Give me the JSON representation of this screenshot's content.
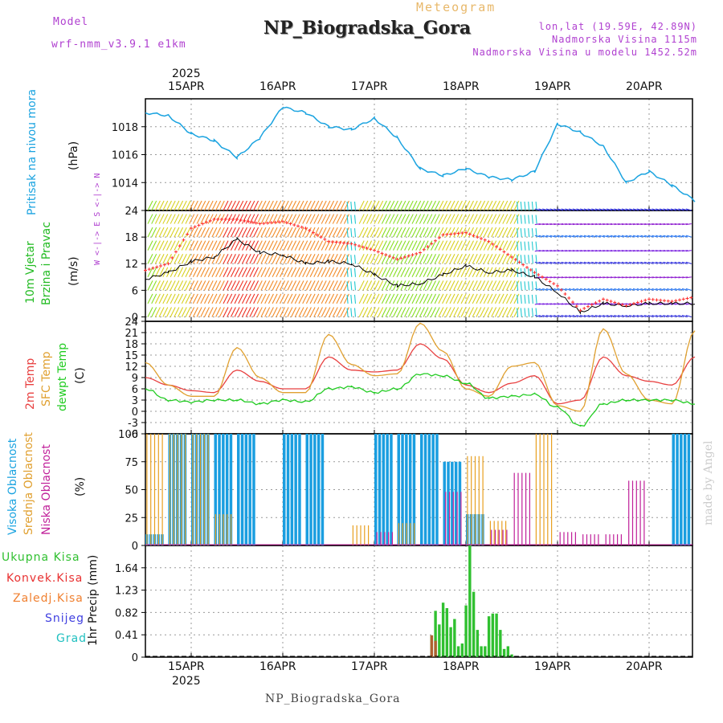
{
  "header": {
    "model_label": "Model",
    "model_name": "wrf-nmm_v3.9.1 e1km",
    "meteogram_label": "Meteogram",
    "station_title": "NP_Biogradska_Gora",
    "coords": "lon,lat (19.59E, 42.89N)",
    "altitude": "Nadmorska Visina 1115m",
    "model_altitude": "Nadmorska Visina u modelu 1452.52m",
    "year_top": "2025",
    "year_bottom": "2025",
    "footer_station": "NP_Biogradska_Gora",
    "made_by": "made by Angel"
  },
  "colors": {
    "pressure": "#1aa3e0",
    "wind_green": "#22bb22",
    "wind_speed": "#000000",
    "gust": "#ff3030",
    "temp2m": "#e84040",
    "sfc_temp": "#e0a030",
    "dewpoint": "#22cc22",
    "cloud_high": "#1a9ee0",
    "cloud_mid": "#e8a020",
    "cloud_low": "#c0209a",
    "precip_total": "#30c030",
    "precip_conv": "#e83030",
    "precip_frozen": "#f08030",
    "snow": "#4040e0",
    "hail": "#20c0c0",
    "dir_legend": "#b040d0"
  },
  "panels": {
    "pressure": {
      "label": "Pritisak na nivou mora",
      "unit": "(hPa)"
    },
    "wind": {
      "label1": "10m Vjetar",
      "label2": "Brzina i Pravac",
      "unit": "(m/s)",
      "dir_legend": "W <-|-> E   S <-|-> N"
    },
    "temp": {
      "label1": "2m Temp",
      "label2": "SFC Temp",
      "label3": "dewpt Temp",
      "unit": "(C)"
    },
    "cloud": {
      "label1": "Visoka Oblacnost",
      "label2": "Srednja Oblacnost",
      "label3": "Niska Oblacnost",
      "unit": "(%)"
    },
    "precip": {
      "unit": "1hr Precip (mm)"
    }
  },
  "precip_legend": [
    "Ukupna Kisa",
    "Konvek.Kisa",
    "Zaledj.Kisa",
    "Snijeg",
    "Grad"
  ],
  "chart_data": [
    {
      "type": "line",
      "name": "pressure",
      "x": [
        "14APR 12",
        "14APR 18",
        "15APR 00",
        "15APR 06",
        "15APR 12",
        "15APR 18",
        "16APR 00",
        "16APR 06",
        "16APR 12",
        "16APR 18",
        "17APR 00",
        "17APR 06",
        "17APR 12",
        "17APR 18",
        "18APR 00",
        "18APR 06",
        "18APR 12",
        "18APR 18",
        "19APR 00",
        "19APR 06",
        "19APR 12",
        "19APR 18",
        "20APR 00",
        "20APR 06",
        "20APR 12"
      ],
      "values": [
        1019.0,
        1018.8,
        1017.5,
        1017.0,
        1015.8,
        1017.2,
        1019.4,
        1019.0,
        1018.0,
        1017.8,
        1018.6,
        1017.2,
        1015.0,
        1014.5,
        1015.0,
        1014.4,
        1014.2,
        1014.8,
        1018.2,
        1017.6,
        1016.6,
        1014.0,
        1014.8,
        1013.8,
        1012.7
      ],
      "ylim": [
        1012,
        1020
      ],
      "yticks": [
        1014,
        1016,
        1018
      ],
      "ylabel": "(hPa)"
    },
    {
      "type": "line",
      "name": "wind",
      "x": [
        "14APR 12",
        "14APR 18",
        "15APR 00",
        "15APR 06",
        "15APR 12",
        "15APR 18",
        "16APR 00",
        "16APR 06",
        "16APR 12",
        "16APR 18",
        "17APR 00",
        "17APR 06",
        "17APR 12",
        "17APR 18",
        "18APR 00",
        "18APR 06",
        "18APR 12",
        "18APR 18",
        "19APR 00",
        "19APR 06",
        "19APR 12",
        "19APR 18",
        "20APR 00",
        "20APR 06",
        "20APR 12"
      ],
      "series": [
        {
          "name": "speed",
          "values": [
            8.5,
            10.0,
            12.5,
            13.5,
            17.5,
            14.5,
            14.0,
            12.0,
            12.5,
            12.0,
            9.5,
            7.0,
            7.5,
            9.5,
            11.5,
            10.0,
            10.5,
            9.0,
            5.5,
            1.0,
            3.0,
            2.5,
            3.0,
            3.0,
            3.0
          ]
        },
        {
          "name": "gust",
          "values": [
            10.5,
            12.0,
            20.0,
            22.0,
            22.0,
            21.0,
            21.5,
            20.0,
            17.0,
            16.5,
            15.0,
            13.0,
            14.5,
            18.5,
            19.0,
            17.0,
            13.5,
            10.0,
            7.0,
            1.5,
            4.0,
            2.5,
            4.0,
            3.5,
            4.5
          ]
        }
      ],
      "ylim": [
        -1,
        24
      ],
      "yticks": [
        0,
        6,
        12,
        18,
        24
      ],
      "ylabel": "(m/s)"
    },
    {
      "type": "line",
      "name": "temperature",
      "x": [
        "14APR 12",
        "14APR 18",
        "15APR 00",
        "15APR 06",
        "15APR 12",
        "15APR 18",
        "16APR 00",
        "16APR 06",
        "16APR 12",
        "16APR 18",
        "17APR 00",
        "17APR 06",
        "17APR 12",
        "17APR 18",
        "18APR 00",
        "18APR 06",
        "18APR 12",
        "18APR 18",
        "19APR 00",
        "19APR 06",
        "19APR 12",
        "19APR 18",
        "20APR 00",
        "20APR 06",
        "20APR 12"
      ],
      "series": [
        {
          "name": "2m Temp",
          "values": [
            9.0,
            7.0,
            5.5,
            5.0,
            11.0,
            8.0,
            6.0,
            6.0,
            14.5,
            11.0,
            10.5,
            11.0,
            18.0,
            14.0,
            7.0,
            5.0,
            7.5,
            9.5,
            2.0,
            3.0,
            14.5,
            9.5,
            8.0,
            7.0,
            14.5
          ]
        },
        {
          "name": "SFC Temp",
          "values": [
            13.0,
            7.0,
            4.0,
            4.0,
            17.0,
            9.0,
            5.0,
            5.0,
            20.5,
            12.5,
            9.5,
            10.0,
            23.5,
            16.0,
            6.0,
            4.0,
            12.0,
            13.0,
            1.5,
            0.0,
            22.0,
            10.0,
            3.0,
            2.0,
            21.5
          ]
        },
        {
          "name": "dewpt Temp",
          "values": [
            6.0,
            3.0,
            2.5,
            3.0,
            3.0,
            2.0,
            3.0,
            2.5,
            6.0,
            6.5,
            5.0,
            6.0,
            10.0,
            9.5,
            7.5,
            3.5,
            4.0,
            4.5,
            1.0,
            -4.0,
            2.0,
            3.0,
            3.0,
            3.0,
            2.0
          ]
        }
      ],
      "ylim": [
        -6,
        24
      ],
      "yticks": [
        -6,
        -3,
        0,
        3,
        6,
        9,
        12,
        15,
        18,
        21,
        24
      ],
      "ylabel": "(C)"
    },
    {
      "type": "bar",
      "name": "cloud_cover",
      "x": [
        "14APR 12",
        "14APR 18",
        "15APR 00",
        "15APR 06",
        "15APR 12",
        "15APR 18",
        "16APR 00",
        "16APR 06",
        "16APR 12",
        "16APR 18",
        "17APR 00",
        "17APR 06",
        "17APR 12",
        "17APR 18",
        "18APR 00",
        "18APR 06",
        "18APR 12",
        "18APR 18",
        "19APR 00",
        "19APR 06",
        "19APR 12",
        "19APR 18",
        "20APR 00",
        "20APR 06",
        "20APR 12"
      ],
      "series": [
        {
          "name": "Visoka Oblacnost",
          "values": [
            10,
            100,
            100,
            100,
            100,
            0,
            100,
            100,
            0,
            0,
            100,
            100,
            100,
            75,
            28,
            0,
            0,
            0,
            0,
            0,
            0,
            0,
            0,
            100,
            100
          ]
        },
        {
          "name": "Srednja Oblacnost",
          "values": [
            100,
            100,
            100,
            28,
            0,
            0,
            0,
            0,
            0,
            18,
            0,
            20,
            0,
            0,
            80,
            22,
            0,
            100,
            0,
            0,
            0,
            0,
            0,
            0,
            100
          ]
        },
        {
          "name": "Niska Oblacnost",
          "values": [
            0,
            0,
            0,
            0,
            0,
            0,
            0,
            0,
            0,
            0,
            12,
            0,
            0,
            48,
            0,
            14,
            65,
            0,
            12,
            10,
            10,
            58,
            0,
            0,
            0
          ]
        }
      ],
      "ylim": [
        0,
        100
      ],
      "yticks": [
        0,
        25,
        50,
        75,
        100
      ],
      "ylabel": "(%)"
    },
    {
      "type": "bar",
      "name": "precipitation",
      "x": [
        "17APR 15",
        "17APR 16",
        "17APR 17",
        "17APR 18",
        "17APR 19",
        "17APR 20",
        "17APR 21",
        "17APR 22",
        "17APR 23",
        "18APR 00",
        "18APR 01",
        "18APR 02",
        "18APR 03",
        "18APR 04",
        "18APR 05",
        "18APR 06",
        "18APR 07",
        "18APR 08",
        "18APR 09",
        "18APR 10",
        "18APR 11",
        "18APR 12"
      ],
      "series": [
        {
          "name": "Ukupna Kisa",
          "values": [
            0.4,
            0.85,
            0.6,
            1.0,
            0.9,
            0.55,
            0.7,
            0.2,
            0.25,
            0.95,
            2.05,
            1.2,
            0.5,
            0.2,
            0.2,
            0.75,
            0.8,
            0.8,
            0.5,
            0.15,
            0.2,
            0.05
          ]
        },
        {
          "name": "Konvek.Kisa",
          "values": [
            0.4,
            0.3,
            0,
            0,
            0,
            0,
            0,
            0,
            0,
            0,
            0,
            0,
            0,
            0,
            0,
            0,
            0,
            0,
            0,
            0,
            0,
            0
          ]
        }
      ],
      "ylim": [
        0,
        2.05
      ],
      "yticks": [
        0,
        0.41,
        0.82,
        1.23,
        1.64
      ],
      "ylabel": "1hr Precip (mm)"
    }
  ],
  "axes": {
    "top_dates": [
      "15APR",
      "16APR",
      "17APR",
      "18APR",
      "19APR",
      "20APR"
    ],
    "bottom_dates": [
      "15APR",
      "16APR",
      "17APR",
      "18APR",
      "19APR",
      "20APR"
    ]
  }
}
